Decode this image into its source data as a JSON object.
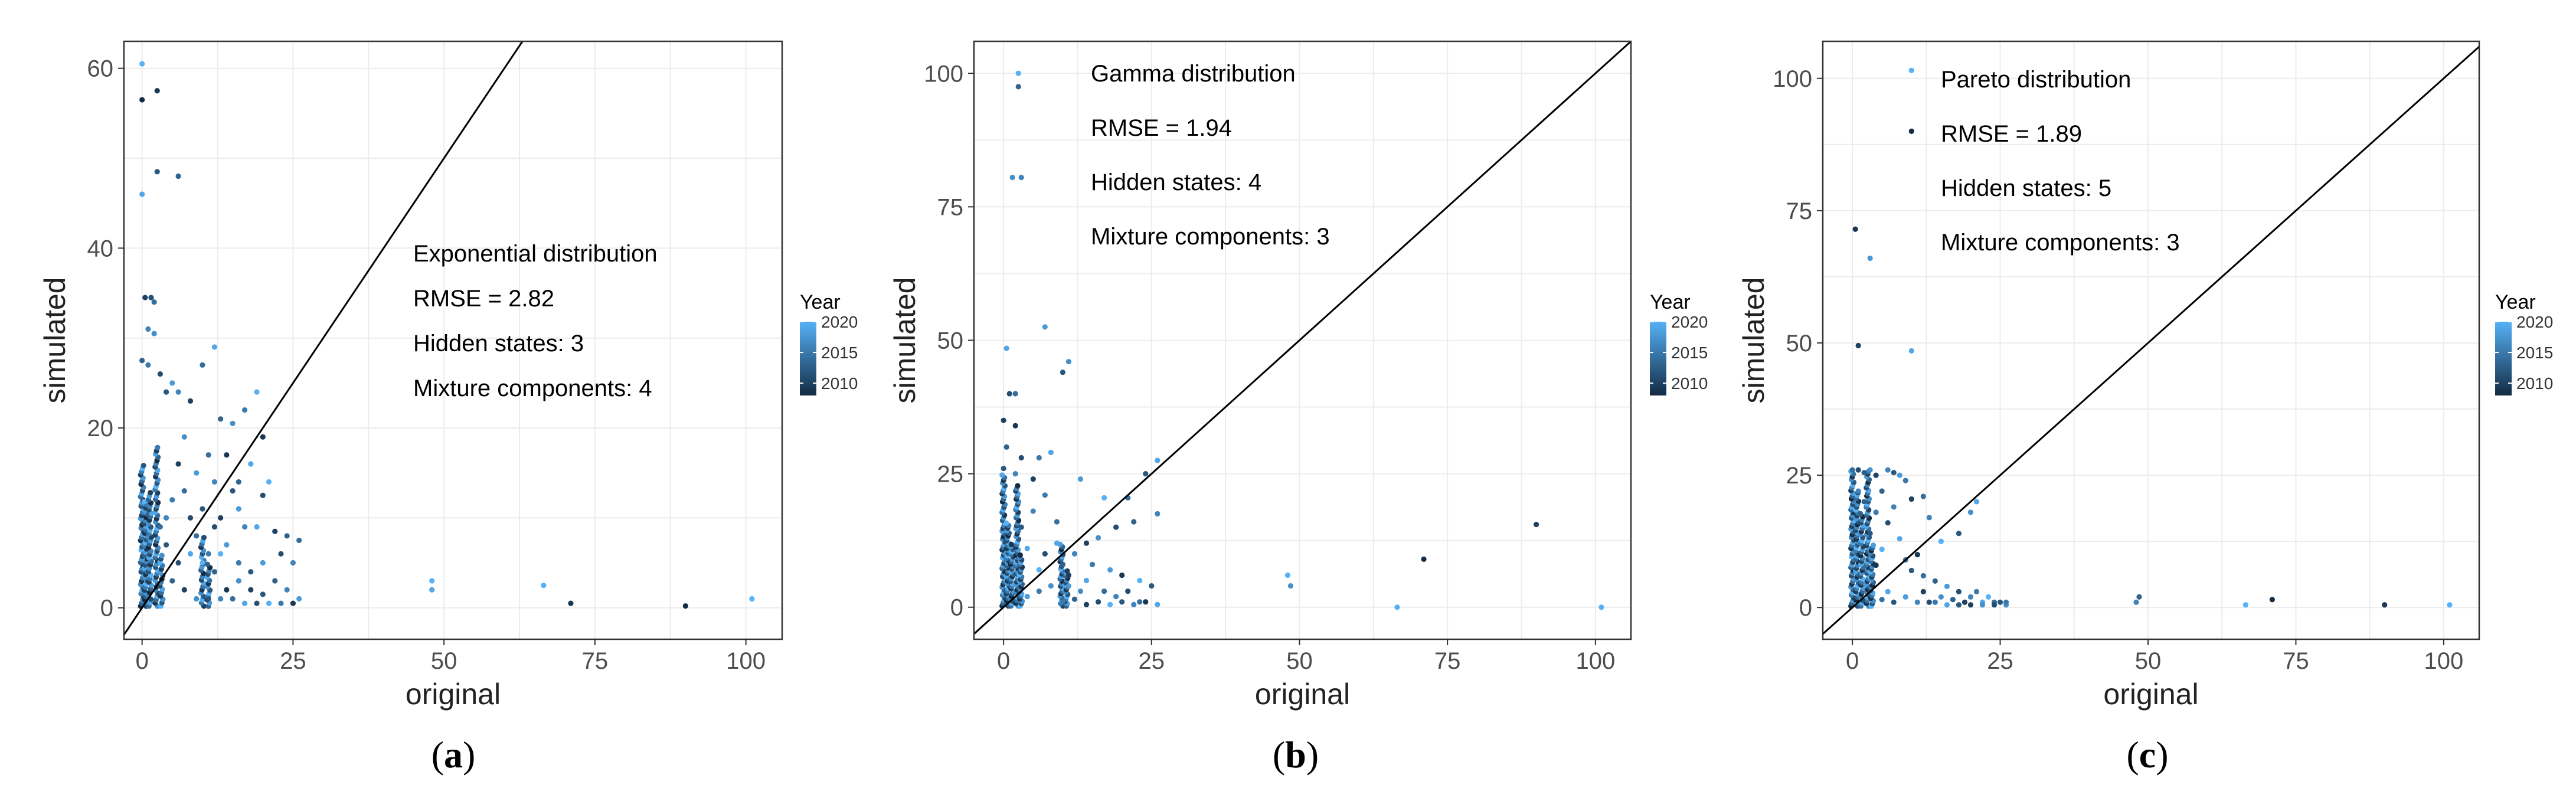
{
  "chart_data": [
    {
      "type": "scatter",
      "caption": {
        "open": "(",
        "letter": "a",
        "close": ")"
      },
      "xlabel": "original",
      "ylabel": "simulated",
      "xlim": [
        -3,
        106
      ],
      "ylim": [
        -3.5,
        63
      ],
      "xticks": [
        0,
        25,
        50,
        75,
        100
      ],
      "yticks": [
        0,
        20,
        40,
        60
      ],
      "reference_line": "y = x",
      "annotation": [
        "Exponential distribution",
        "RMSE = 2.82",
        "Hidden states: 3",
        "Mixture components: 4"
      ],
      "legend": {
        "title": "Year",
        "labels": [
          "2020",
          "2015",
          "2010"
        ]
      },
      "points": [
        [
          0,
          60.5,
          2020
        ],
        [
          0,
          56.5,
          2008
        ],
        [
          0,
          46,
          2019
        ],
        [
          2.5,
          57.5,
          2009
        ],
        [
          2.5,
          48.5,
          2012
        ],
        [
          6,
          48,
          2013
        ],
        [
          0.5,
          34.5,
          2010
        ],
        [
          1.5,
          34.5,
          2011
        ],
        [
          2,
          34,
          2014
        ],
        [
          1,
          31,
          2016
        ],
        [
          2,
          30.5,
          2017
        ],
        [
          0,
          27.5,
          2013
        ],
        [
          1,
          27,
          2015
        ],
        [
          3,
          26,
          2011
        ],
        [
          5,
          25,
          2018
        ],
        [
          10,
          27,
          2014
        ],
        [
          12,
          29,
          2019
        ],
        [
          4,
          24,
          2012
        ],
        [
          6,
          24,
          2016
        ],
        [
          8,
          23,
          2010
        ],
        [
          13,
          21,
          2013
        ],
        [
          15,
          20.5,
          2017
        ],
        [
          19,
          24,
          2020
        ],
        [
          17,
          22,
          2015
        ],
        [
          20,
          19,
          2009
        ],
        [
          18,
          16,
          2019
        ],
        [
          21,
          14,
          2020
        ],
        [
          20,
          12.5,
          2011
        ],
        [
          15,
          13,
          2012
        ],
        [
          12,
          14,
          2016
        ],
        [
          9,
          15,
          2018
        ],
        [
          7,
          13,
          2014
        ],
        [
          5,
          12,
          2015
        ],
        [
          4,
          10,
          2016
        ],
        [
          10,
          11,
          2012
        ],
        [
          13,
          10,
          2010
        ],
        [
          16,
          11,
          2018
        ],
        [
          19,
          9,
          2019
        ],
        [
          22,
          8.5,
          2010
        ],
        [
          24,
          8,
          2013
        ],
        [
          26,
          7.5,
          2014
        ],
        [
          23,
          6,
          2011
        ],
        [
          25,
          5,
          2016
        ],
        [
          20,
          5,
          2018
        ],
        [
          18,
          4,
          2012
        ],
        [
          16,
          3,
          2017
        ],
        [
          14,
          2,
          2009
        ],
        [
          12,
          4,
          2013
        ],
        [
          11,
          6,
          2015
        ],
        [
          9,
          8,
          2014
        ],
        [
          8,
          6,
          2019
        ],
        [
          6,
          5,
          2011
        ],
        [
          5,
          3,
          2013
        ],
        [
          7,
          2,
          2010
        ],
        [
          9,
          1,
          2017
        ],
        [
          11,
          1,
          2012
        ],
        [
          13,
          1,
          2016
        ],
        [
          15,
          1,
          2014
        ],
        [
          17,
          0.5,
          2019
        ],
        [
          19,
          0.5,
          2011
        ],
        [
          21,
          0.5,
          2020
        ],
        [
          23,
          0.5,
          2015
        ],
        [
          25,
          0.5,
          2009
        ],
        [
          26,
          1,
          2018
        ],
        [
          24,
          2,
          2016
        ],
        [
          22,
          3,
          2013
        ],
        [
          20,
          1.5,
          2012
        ],
        [
          18,
          2,
          2010
        ],
        [
          16,
          5,
          2015
        ],
        [
          14,
          7,
          2018
        ],
        [
          12,
          9,
          2011
        ],
        [
          10,
          5,
          2020
        ],
        [
          4,
          7,
          2012
        ],
        [
          3,
          9,
          2014
        ],
        [
          6,
          16,
          2010
        ],
        [
          7,
          19,
          2017
        ],
        [
          8,
          10,
          2011
        ],
        [
          11,
          17,
          2014
        ],
        [
          14,
          17,
          2009
        ],
        [
          16,
          14,
          2013
        ],
        [
          17,
          9,
          2016
        ],
        [
          13,
          6,
          2020
        ],
        [
          48,
          3,
          2020
        ],
        [
          48,
          2,
          2019
        ],
        [
          66.5,
          2.5,
          2020
        ],
        [
          71,
          0.5,
          2009
        ],
        [
          90,
          0.2,
          2008
        ],
        [
          101,
          1,
          2020
        ]
      ],
      "columns": [
        {
          "x": 0,
          "ymax": 16,
          "count": 46
        },
        {
          "x": 0.6,
          "ymax": 12,
          "count": 34
        },
        {
          "x": 1.3,
          "ymax": 13,
          "count": 34
        },
        {
          "x": 2.4,
          "ymax": 18,
          "count": 50
        },
        {
          "x": 3.2,
          "ymax": 6,
          "count": 16
        },
        {
          "x": 10,
          "ymax": 8,
          "count": 22
        },
        {
          "x": 11,
          "ymax": 5,
          "count": 14
        }
      ]
    },
    {
      "type": "scatter",
      "caption": {
        "open": "(",
        "letter": "b",
        "close": ")"
      },
      "xlabel": "original",
      "ylabel": "simulated",
      "xlim": [
        -5,
        106
      ],
      "ylim": [
        -6,
        106
      ],
      "xticks": [
        0,
        25,
        50,
        75,
        100
      ],
      "yticks": [
        0,
        25,
        50,
        75,
        100
      ],
      "reference_line": "y = x",
      "annotation": [
        "Gamma distribution",
        "RMSE = 1.94",
        "Hidden states: 4",
        "Mixture components: 3"
      ],
      "legend": {
        "title": "Year",
        "labels": [
          "2020",
          "2015",
          "2010"
        ]
      },
      "points": [
        [
          2.5,
          100,
          2020
        ],
        [
          2.5,
          97.5,
          2013
        ],
        [
          1.5,
          80.5,
          2017
        ],
        [
          3,
          80.5,
          2016
        ],
        [
          7,
          52.5,
          2018
        ],
        [
          0.5,
          48.5,
          2019
        ],
        [
          11,
          46,
          2017
        ],
        [
          10,
          44,
          2012
        ],
        [
          1,
          40,
          2011
        ],
        [
          2,
          40,
          2014
        ],
        [
          0,
          35,
          2010
        ],
        [
          2,
          34,
          2009
        ],
        [
          0.5,
          30,
          2013
        ],
        [
          3,
          28,
          2011
        ],
        [
          6,
          28,
          2015
        ],
        [
          8,
          29,
          2019
        ],
        [
          0,
          26,
          2012
        ],
        [
          2,
          25,
          2016
        ],
        [
          5,
          24,
          2010
        ],
        [
          13,
          24,
          2018
        ],
        [
          7,
          21,
          2015
        ],
        [
          17,
          20.5,
          2020
        ],
        [
          21,
          20.5,
          2014
        ],
        [
          26,
          27.5,
          2019
        ],
        [
          24,
          25,
          2012
        ],
        [
          26,
          17.5,
          2016
        ],
        [
          22,
          16,
          2013
        ],
        [
          19,
          15,
          2011
        ],
        [
          16,
          13,
          2017
        ],
        [
          14,
          12,
          2010
        ],
        [
          12,
          10,
          2016
        ],
        [
          9,
          12,
          2019
        ],
        [
          10,
          8,
          2013
        ],
        [
          15,
          8,
          2015
        ],
        [
          18,
          7,
          2018
        ],
        [
          20,
          6,
          2009
        ],
        [
          23,
          5,
          2020
        ],
        [
          25,
          4,
          2012
        ],
        [
          21,
          3,
          2011
        ],
        [
          19,
          2,
          2016
        ],
        [
          17,
          3,
          2014
        ],
        [
          14,
          5,
          2019
        ],
        [
          11,
          6,
          2010
        ],
        [
          8,
          4,
          2017
        ],
        [
          6,
          3,
          2015
        ],
        [
          4,
          2,
          2018
        ],
        [
          12,
          1.5,
          2013
        ],
        [
          16,
          1,
          2011
        ],
        [
          20,
          1,
          2012
        ],
        [
          23,
          1,
          2014
        ],
        [
          26,
          0.5,
          2019
        ],
        [
          24,
          1,
          2009
        ],
        [
          18,
          0.5,
          2020
        ],
        [
          22,
          0.5,
          2016
        ],
        [
          14,
          0.5,
          2010
        ],
        [
          10,
          1,
          2015
        ],
        [
          13,
          3,
          2017
        ],
        [
          3,
          15,
          2012
        ],
        [
          5,
          18,
          2016
        ],
        [
          4,
          11,
          2019
        ],
        [
          7,
          10,
          2011
        ],
        [
          9,
          16,
          2014
        ],
        [
          6,
          7,
          2020
        ],
        [
          11,
          4,
          2018
        ],
        [
          48,
          6,
          2020
        ],
        [
          48.5,
          4,
          2017
        ],
        [
          66.5,
          0,
          2020
        ],
        [
          71,
          9,
          2008
        ],
        [
          90,
          15.5,
          2010
        ],
        [
          101,
          0,
          2020
        ]
      ],
      "columns": [
        {
          "x": 0,
          "ymax": 25,
          "count": 50
        },
        {
          "x": 0.7,
          "ymax": 16,
          "count": 34
        },
        {
          "x": 1.4,
          "ymax": 12,
          "count": 26
        },
        {
          "x": 2.3,
          "ymax": 23,
          "count": 46
        },
        {
          "x": 2.9,
          "ymax": 10,
          "count": 22
        },
        {
          "x": 9.8,
          "ymax": 12,
          "count": 26
        },
        {
          "x": 10.6,
          "ymax": 7,
          "count": 16
        }
      ]
    },
    {
      "type": "scatter",
      "caption": {
        "open": "(",
        "letter": "c",
        "close": ")"
      },
      "xlabel": "original",
      "ylabel": "simulated",
      "xlim": [
        -5,
        106
      ],
      "ylim": [
        -6,
        107
      ],
      "xticks": [
        0,
        25,
        50,
        75,
        100
      ],
      "yticks": [
        0,
        25,
        50,
        75,
        100
      ],
      "reference_line": "y = x",
      "annotation": [
        "Pareto distribution",
        "RMSE = 1.89",
        "Hidden states: 5",
        "Mixture components: 3"
      ],
      "legend": {
        "title": "Year",
        "labels": [
          "2020",
          "2015",
          "2010"
        ]
      },
      "points": [
        [
          10,
          101.5,
          2020
        ],
        [
          10,
          90,
          2008
        ],
        [
          0.5,
          71.5,
          2009
        ],
        [
          3,
          66,
          2018
        ],
        [
          1,
          49.5,
          2010
        ],
        [
          10,
          48.5,
          2019
        ],
        [
          0,
          26,
          2014
        ],
        [
          1,
          26,
          2011
        ],
        [
          2,
          25.5,
          2013
        ],
        [
          3,
          26,
          2017
        ],
        [
          4,
          25,
          2010
        ],
        [
          6,
          26,
          2016
        ],
        [
          7,
          25.5,
          2012
        ],
        [
          8,
          25,
          2018
        ],
        [
          9,
          24,
          2015
        ],
        [
          10,
          20.5,
          2010
        ],
        [
          12,
          21,
          2014
        ],
        [
          13,
          17,
          2016
        ],
        [
          15,
          12.5,
          2020
        ],
        [
          18,
          14,
          2012
        ],
        [
          21,
          20,
          2019
        ],
        [
          20,
          18,
          2017
        ],
        [
          5,
          22,
          2013
        ],
        [
          7,
          19,
          2016
        ],
        [
          6,
          16,
          2011
        ],
        [
          8,
          13,
          2019
        ],
        [
          9,
          9,
          2015
        ],
        [
          10,
          7,
          2012
        ],
        [
          11,
          10,
          2009
        ],
        [
          12,
          6,
          2014
        ],
        [
          14,
          5,
          2013
        ],
        [
          16,
          4,
          2018
        ],
        [
          18,
          3,
          2011
        ],
        [
          20,
          2,
          2016
        ],
        [
          22,
          1,
          2019
        ],
        [
          24,
          1,
          2014
        ],
        [
          26,
          0.5,
          2017
        ],
        [
          25,
          1,
          2012
        ],
        [
          23,
          2,
          2020
        ],
        [
          21,
          3,
          2015
        ],
        [
          19,
          1,
          2010
        ],
        [
          17,
          1.5,
          2013
        ],
        [
          15,
          2,
          2017
        ],
        [
          13,
          1,
          2011
        ],
        [
          11,
          1,
          2016
        ],
        [
          9,
          2,
          2018
        ],
        [
          7,
          1,
          2012
        ],
        [
          5,
          1.5,
          2014
        ],
        [
          6,
          3,
          2019
        ],
        [
          4,
          8,
          2009
        ],
        [
          5,
          11,
          2020
        ],
        [
          3,
          14,
          2012
        ],
        [
          4,
          18,
          2015
        ],
        [
          2,
          20,
          2013
        ],
        [
          1,
          22,
          2016
        ],
        [
          12,
          3,
          2010
        ],
        [
          14,
          1,
          2015
        ],
        [
          16,
          0.5,
          2019
        ],
        [
          18,
          0.5,
          2012
        ],
        [
          20,
          0.5,
          2010
        ],
        [
          22,
          0.5,
          2017
        ],
        [
          24,
          0.5,
          2011
        ],
        [
          26,
          1,
          2015
        ],
        [
          48,
          1,
          2016
        ],
        [
          48.5,
          2,
          2013
        ],
        [
          66.5,
          0.5,
          2020
        ],
        [
          71,
          1.5,
          2008
        ],
        [
          90,
          0.5,
          2009
        ],
        [
          101,
          0.5,
          2020
        ]
      ],
      "columns": [
        {
          "x": 0,
          "ymax": 26,
          "count": 50
        },
        {
          "x": 0.8,
          "ymax": 22,
          "count": 40
        },
        {
          "x": 1.6,
          "ymax": 18,
          "count": 32
        },
        {
          "x": 2.6,
          "ymax": 26,
          "count": 50
        },
        {
          "x": 3.3,
          "ymax": 12,
          "count": 24
        }
      ]
    }
  ],
  "colors": {
    "high": "#56B1F7",
    "low": "#132B43",
    "grid": "#ececec",
    "frame": "#333333"
  }
}
